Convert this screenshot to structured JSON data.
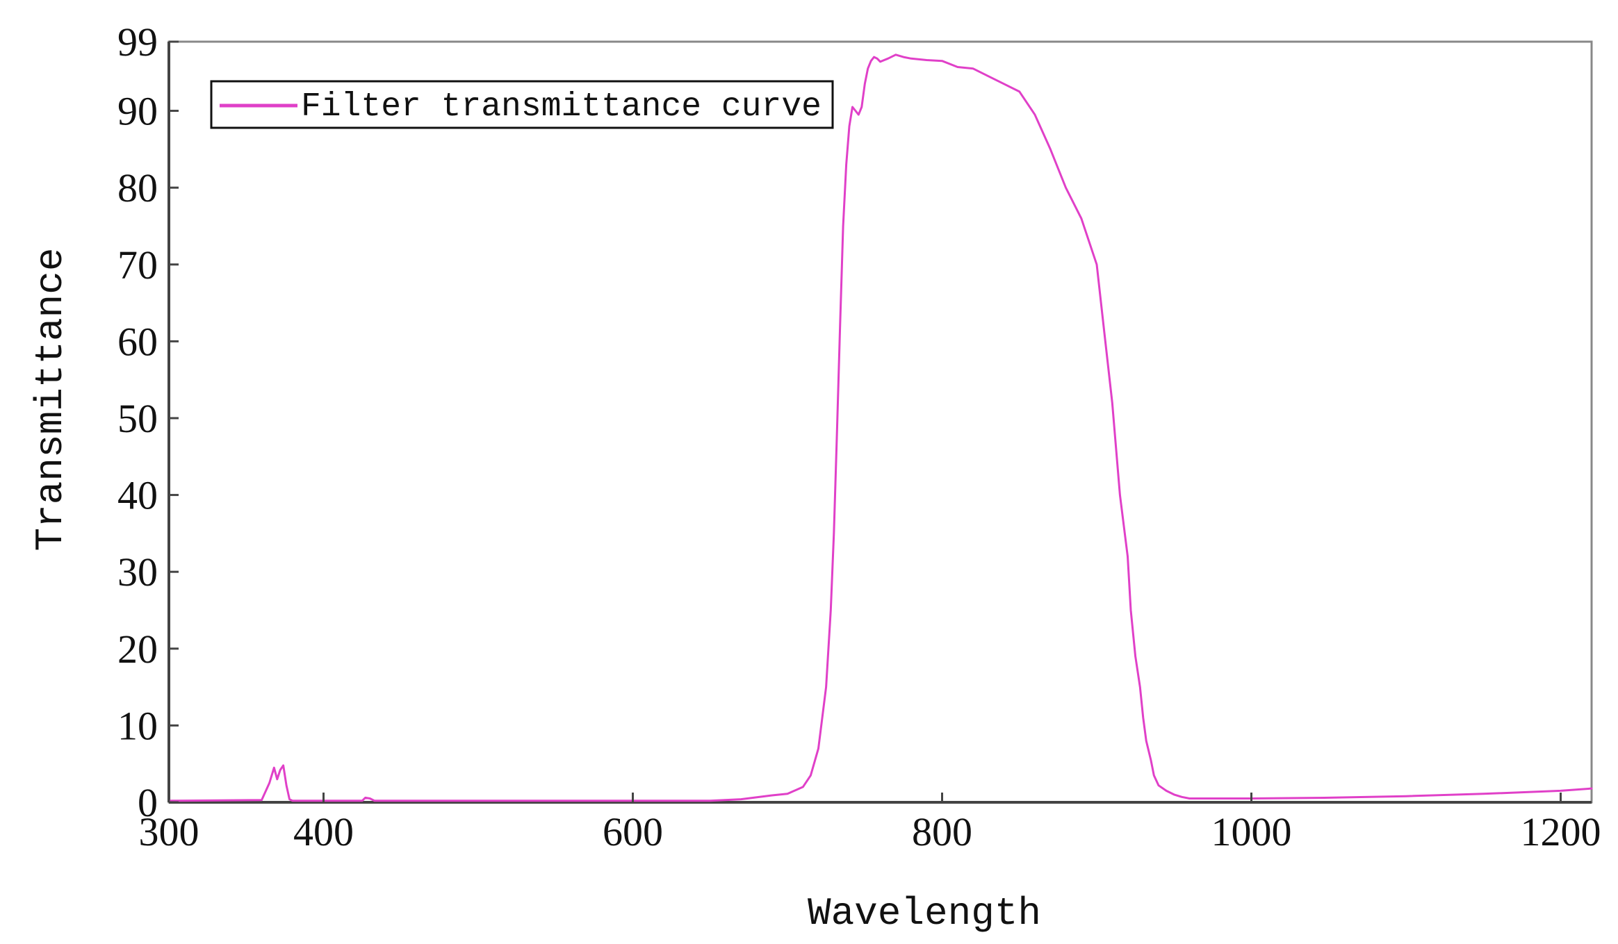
{
  "chart_data": {
    "type": "line",
    "title": "",
    "xlabel": "Wavelength",
    "ylabel": "Transmittance",
    "xlim": [
      300,
      1220
    ],
    "ylim": [
      0,
      99
    ],
    "xticks": [
      300,
      400,
      600,
      800,
      1000,
      1200
    ],
    "yticks": [
      0,
      10,
      20,
      30,
      40,
      50,
      60,
      70,
      80,
      90,
      99
    ],
    "grid": false,
    "legend": {
      "position": "top-left"
    },
    "colors": {
      "series": "#e040c8",
      "axis": "#444444",
      "frame": "#888888"
    },
    "series": [
      {
        "name": "Filter transmittance curve",
        "x": [
          300,
          360,
          365,
          368,
          370,
          372,
          374,
          376,
          378,
          380,
          383,
          390,
          425,
          427,
          430,
          433,
          460,
          540,
          600,
          650,
          670,
          690,
          700,
          710,
          715,
          720,
          725,
          728,
          730,
          732,
          734,
          736,
          738,
          740,
          742,
          744,
          746,
          748,
          750,
          752,
          754,
          756,
          758,
          760,
          765,
          770,
          775,
          780,
          790,
          800,
          810,
          820,
          830,
          840,
          850,
          860,
          870,
          880,
          890,
          900,
          905,
          910,
          915,
          920,
          922,
          925,
          928,
          930,
          932,
          935,
          937,
          940,
          945,
          950,
          955,
          960,
          970,
          980,
          1000,
          1050,
          1100,
          1150,
          1200,
          1220
        ],
        "y": [
          0.2,
          0.3,
          2.5,
          4.5,
          3.0,
          4.2,
          4.8,
          2.2,
          0.4,
          0.2,
          0.2,
          0.2,
          0.2,
          0.6,
          0.5,
          0.2,
          0.2,
          0.2,
          0.2,
          0.2,
          0.4,
          0.9,
          1.1,
          2.0,
          3.5,
          7.0,
          15.0,
          25.0,
          35.0,
          48.0,
          62.0,
          75.0,
          83.0,
          88.0,
          90.5,
          90.0,
          89.5,
          90.5,
          93.5,
          95.5,
          96.5,
          97.0,
          96.8,
          96.4,
          96.8,
          97.3,
          97.0,
          96.8,
          96.6,
          96.5,
          95.7,
          95.5,
          94.5,
          93.5,
          92.5,
          89.5,
          85.0,
          80.0,
          76.0,
          70.0,
          61.0,
          52.0,
          40.0,
          32.0,
          25.0,
          19.0,
          15.0,
          11.0,
          8.0,
          5.5,
          3.5,
          2.2,
          1.5,
          1.0,
          0.7,
          0.5,
          0.5,
          0.5,
          0.5,
          0.6,
          0.8,
          1.1,
          1.5,
          1.8
        ]
      }
    ]
  }
}
